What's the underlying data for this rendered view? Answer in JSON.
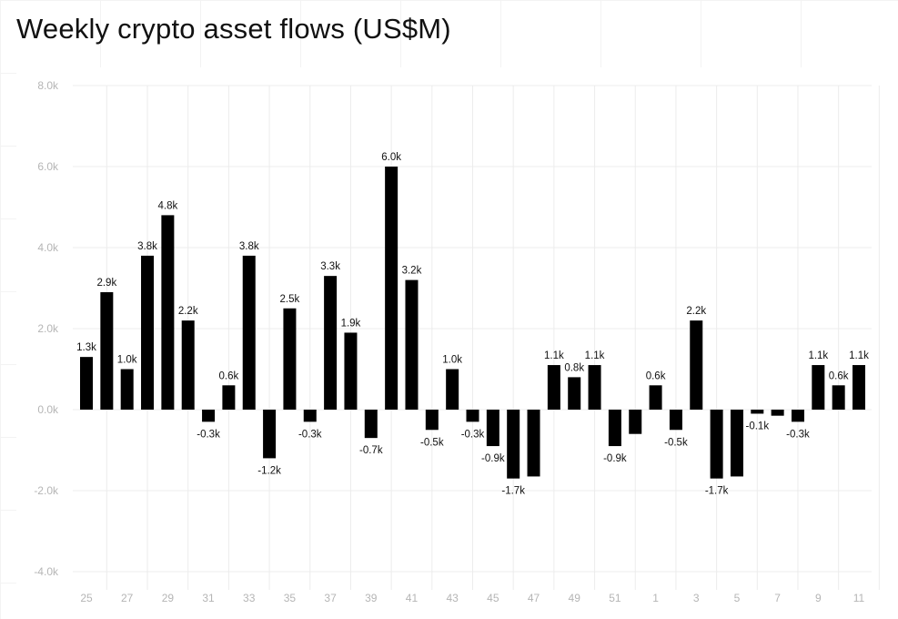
{
  "chart_data": {
    "type": "bar",
    "title": "Weekly crypto asset flows (US$M)",
    "xlabel": "",
    "ylabel": "",
    "ylim": [
      -4000,
      8000
    ],
    "yticks": [
      -4000,
      -2000,
      0,
      2000,
      4000,
      6000,
      8000
    ],
    "ytick_labels": [
      "-4.0k",
      "-2.0k",
      "0.0k",
      "2.0k",
      "4.0k",
      "6.0k",
      "8.0k"
    ],
    "grid": true,
    "categories": [
      "25",
      "26",
      "27",
      "28",
      "29",
      "30",
      "31",
      "32",
      "33",
      "34",
      "35",
      "36",
      "37",
      "38",
      "39",
      "40",
      "41",
      "42",
      "43",
      "44",
      "45",
      "46",
      "47",
      "48",
      "49",
      "50",
      "51",
      "52",
      "1",
      "2",
      "3",
      "4",
      "5",
      "6",
      "7",
      "8",
      "9",
      "10",
      "11"
    ],
    "xtick_labels": [
      "25",
      "27",
      "29",
      "31",
      "33",
      "35",
      "37",
      "39",
      "41",
      "43",
      "45",
      "47",
      "49",
      "51",
      "1",
      "3",
      "5",
      "7",
      "9",
      "11"
    ],
    "values": [
      1300,
      2900,
      1000,
      3800,
      4800,
      2200,
      -300,
      600,
      3800,
      -1200,
      2500,
      -300,
      3300,
      1900,
      -700,
      6000,
      3200,
      -500,
      1000,
      -300,
      -900,
      -1700,
      -1650,
      1100,
      800,
      1100,
      -900,
      -600,
      600,
      -500,
      2200,
      -1700,
      -1650,
      -100,
      -150,
      -300,
      1100,
      600,
      1100
    ],
    "data_labels": [
      "1.3k",
      "2.9k",
      "1.0k",
      "3.8k",
      "4.8k",
      "2.2k",
      "-0.3k",
      "0.6k",
      "3.8k",
      "-1.2k",
      "2.5k",
      "-0.3k",
      "3.3k",
      "1.9k",
      "-0.7k",
      "6.0k",
      "3.2k",
      "-0.5k",
      "1.0k",
      "-0.3k",
      "-0.9k",
      "-1.7k",
      null,
      "1.1k",
      "0.8k",
      "1.1k",
      "-0.9k",
      null,
      "0.6k",
      "-0.5k",
      "2.2k",
      "-1.7k",
      null,
      "-0.1k",
      null,
      "-0.3k",
      "1.1k",
      "0.6k",
      "1.1k"
    ],
    "bar_color": "#000000",
    "grid_color": "#ececec",
    "tick_color": "#b5b5b5"
  }
}
